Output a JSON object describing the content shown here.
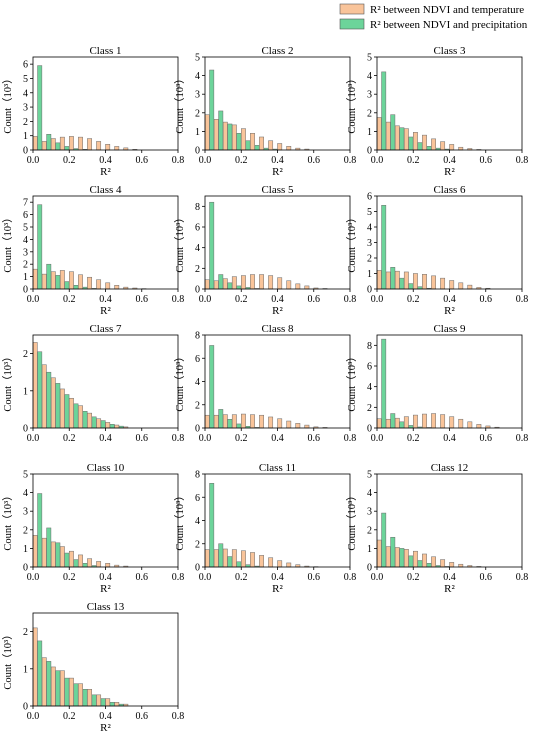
{
  "legend": {
    "entries": [
      {
        "label": "R² between NDVI and temperature",
        "color": "#F9C49A"
      },
      {
        "label": "R² between NDVI and precipitation",
        "color": "#6CD49A"
      }
    ],
    "placement": "top-right"
  },
  "chart_data": [
    {
      "type": "bar",
      "title": "Class 1",
      "xlabel": "R²",
      "ylabel": "Count（10³）",
      "xlim": [
        0,
        0.8
      ],
      "ylim": [
        0,
        6.5
      ],
      "yticks": [
        0,
        1,
        2,
        3,
        4,
        5,
        6
      ],
      "x": [
        0.025,
        0.075,
        0.125,
        0.175,
        0.225,
        0.275,
        0.325,
        0.375,
        0.425,
        0.475,
        0.525,
        0.575,
        0.625,
        0.675,
        0.725,
        0.775
      ],
      "series": [
        {
          "name": "R² between NDVI and temperature",
          "values": [
            0.95,
            0.6,
            0.8,
            0.9,
            0.95,
            0.9,
            0.8,
            0.6,
            0.4,
            0.25,
            0.15,
            0.05,
            0,
            0,
            0,
            0
          ]
        },
        {
          "name": "R² between NDVI and precipitation",
          "values": [
            5.9,
            1.1,
            0.5,
            0.25,
            0.1,
            0.05,
            0,
            0,
            0,
            0,
            0,
            0,
            0,
            0,
            0,
            0
          ]
        }
      ]
    },
    {
      "type": "bar",
      "title": "Class 2",
      "xlabel": "R²",
      "ylabel": "Count（10³）",
      "xlim": [
        0,
        0.8
      ],
      "ylim": [
        0,
        5
      ],
      "yticks": [
        0,
        1,
        2,
        3,
        4,
        5
      ],
      "x": [
        0.025,
        0.075,
        0.125,
        0.175,
        0.225,
        0.275,
        0.325,
        0.375,
        0.425,
        0.475,
        0.525,
        0.575,
        0.625,
        0.675,
        0.725,
        0.775
      ],
      "series": [
        {
          "name": "R² between NDVI and temperature",
          "values": [
            1.9,
            1.65,
            1.5,
            1.35,
            1.15,
            0.9,
            0.7,
            0.5,
            0.35,
            0.2,
            0.1,
            0.05,
            0,
            0,
            0,
            0
          ]
        },
        {
          "name": "R² between NDVI and precipitation",
          "values": [
            4.3,
            2.1,
            1.4,
            0.9,
            0.5,
            0.25,
            0.1,
            0.05,
            0,
            0,
            0,
            0,
            0,
            0,
            0,
            0
          ]
        }
      ]
    },
    {
      "type": "bar",
      "title": "Class 3",
      "xlabel": "R²",
      "ylabel": "Count（10³）",
      "xlim": [
        0,
        0.8
      ],
      "ylim": [
        0,
        5
      ],
      "yticks": [
        0,
        1,
        2,
        3,
        4,
        5
      ],
      "x": [
        0.025,
        0.075,
        0.125,
        0.175,
        0.225,
        0.275,
        0.325,
        0.375,
        0.425,
        0.475,
        0.525,
        0.575,
        0.625,
        0.675,
        0.725,
        0.775
      ],
      "series": [
        {
          "name": "R² between NDVI and temperature",
          "values": [
            1.75,
            1.5,
            1.3,
            1.15,
            0.95,
            0.8,
            0.6,
            0.45,
            0.3,
            0.15,
            0.08,
            0.03,
            0,
            0,
            0,
            0
          ]
        },
        {
          "name": "R² between NDVI and precipitation",
          "values": [
            4.2,
            1.9,
            1.2,
            0.7,
            0.4,
            0.2,
            0.1,
            0.05,
            0,
            0,
            0,
            0,
            0,
            0,
            0,
            0
          ]
        }
      ]
    },
    {
      "type": "bar",
      "title": "Class 4",
      "xlabel": "R²",
      "ylabel": "Count（10³）",
      "xlim": [
        0,
        0.8
      ],
      "ylim": [
        0,
        7.5
      ],
      "yticks": [
        0,
        1,
        2,
        3,
        4,
        5,
        6,
        7
      ],
      "x": [
        0.025,
        0.075,
        0.125,
        0.175,
        0.225,
        0.275,
        0.325,
        0.375,
        0.425,
        0.475,
        0.525,
        0.575,
        0.625,
        0.675,
        0.725,
        0.775
      ],
      "series": [
        {
          "name": "R² between NDVI and temperature",
          "values": [
            1.6,
            1.2,
            1.4,
            1.5,
            1.4,
            1.15,
            0.95,
            0.75,
            0.5,
            0.3,
            0.15,
            0.08,
            0.03,
            0,
            0,
            0
          ]
        },
        {
          "name": "R² between NDVI and precipitation",
          "values": [
            6.8,
            2.0,
            1.1,
            0.6,
            0.3,
            0.15,
            0.05,
            0,
            0,
            0,
            0,
            0,
            0,
            0,
            0,
            0
          ]
        }
      ]
    },
    {
      "type": "bar",
      "title": "Class 5",
      "xlabel": "R²",
      "ylabel": "Count（10³）",
      "xlim": [
        0,
        0.8
      ],
      "ylim": [
        0,
        9
      ],
      "yticks": [
        0,
        2,
        4,
        6,
        8
      ],
      "x": [
        0.025,
        0.075,
        0.125,
        0.175,
        0.225,
        0.275,
        0.325,
        0.375,
        0.425,
        0.475,
        0.525,
        0.575,
        0.625,
        0.675,
        0.725,
        0.775
      ],
      "series": [
        {
          "name": "R² between NDVI and temperature",
          "values": [
            0.9,
            0.8,
            1.0,
            1.2,
            1.3,
            1.4,
            1.4,
            1.3,
            1.1,
            0.8,
            0.5,
            0.3,
            0.1,
            0.05,
            0,
            0
          ]
        },
        {
          "name": "R² between NDVI and precipitation",
          "values": [
            8.4,
            1.4,
            0.6,
            0.3,
            0.15,
            0.05,
            0,
            0,
            0,
            0,
            0,
            0,
            0,
            0,
            0,
            0
          ]
        }
      ]
    },
    {
      "type": "bar",
      "title": "Class 6",
      "xlabel": "R²",
      "ylabel": "Count（10³）",
      "xlim": [
        0,
        0.8
      ],
      "ylim": [
        0,
        6
      ],
      "yticks": [
        0,
        1,
        2,
        3,
        4,
        5,
        6
      ],
      "x": [
        0.025,
        0.075,
        0.125,
        0.175,
        0.225,
        0.275,
        0.325,
        0.375,
        0.425,
        0.475,
        0.525,
        0.575,
        0.625,
        0.675,
        0.725,
        0.775
      ],
      "series": [
        {
          "name": "R² between NDVI and temperature",
          "values": [
            1.2,
            1.1,
            1.15,
            1.1,
            1.0,
            0.95,
            0.85,
            0.7,
            0.55,
            0.4,
            0.25,
            0.1,
            0.05,
            0,
            0,
            0
          ]
        },
        {
          "name": "R² between NDVI and precipitation",
          "values": [
            5.4,
            1.4,
            0.7,
            0.35,
            0.15,
            0.05,
            0,
            0,
            0,
            0,
            0,
            0,
            0,
            0,
            0,
            0
          ]
        }
      ]
    },
    {
      "type": "bar",
      "title": "Class 7",
      "xlabel": "",
      "ylabel": "Count（10³）",
      "xlim": [
        0,
        0.8
      ],
      "ylim": [
        0,
        2.5
      ],
      "yticks": [
        0,
        1,
        2
      ],
      "x": [
        0.025,
        0.075,
        0.125,
        0.175,
        0.225,
        0.275,
        0.325,
        0.375,
        0.425,
        0.475,
        0.525,
        0.575,
        0.625,
        0.675,
        0.725,
        0.775
      ],
      "series": [
        {
          "name": "R² between NDVI and temperature",
          "values": [
            2.3,
            1.7,
            1.35,
            1.05,
            0.8,
            0.6,
            0.4,
            0.25,
            0.15,
            0.08,
            0.03,
            0,
            0,
            0,
            0,
            0
          ]
        },
        {
          "name": "R² between NDVI and precipitation",
          "values": [
            2.05,
            1.5,
            1.2,
            0.9,
            0.65,
            0.45,
            0.3,
            0.2,
            0.1,
            0.05,
            0,
            0,
            0,
            0,
            0,
            0
          ]
        }
      ]
    },
    {
      "type": "bar",
      "title": "Class 8",
      "xlabel": "",
      "ylabel": "Count（10³）",
      "xlim": [
        0,
        0.8
      ],
      "ylim": [
        0,
        8
      ],
      "yticks": [
        0,
        2,
        4,
        6,
        8
      ],
      "x": [
        0.025,
        0.075,
        0.125,
        0.175,
        0.225,
        0.275,
        0.325,
        0.375,
        0.425,
        0.475,
        0.525,
        0.575,
        0.625,
        0.675,
        0.725,
        0.775
      ],
      "series": [
        {
          "name": "R² between NDVI and temperature",
          "values": [
            1.1,
            1.1,
            1.15,
            1.15,
            1.2,
            1.15,
            1.1,
            0.95,
            0.8,
            0.6,
            0.4,
            0.25,
            0.1,
            0.05,
            0,
            0
          ]
        },
        {
          "name": "R² between NDVI and precipitation",
          "values": [
            7.1,
            1.6,
            0.75,
            0.35,
            0.15,
            0.05,
            0,
            0,
            0,
            0,
            0,
            0,
            0,
            0,
            0,
            0
          ]
        }
      ]
    },
    {
      "type": "bar",
      "title": "Class 9",
      "xlabel": "",
      "ylabel": "Count（10³）",
      "xlim": [
        0,
        0.8
      ],
      "ylim": [
        0,
        9
      ],
      "yticks": [
        0,
        2,
        4,
        6,
        8
      ],
      "x": [
        0.025,
        0.075,
        0.125,
        0.175,
        0.225,
        0.275,
        0.325,
        0.375,
        0.425,
        0.475,
        0.525,
        0.575,
        0.625,
        0.675,
        0.725,
        0.775
      ],
      "series": [
        {
          "name": "R² between NDVI and temperature",
          "values": [
            0.9,
            0.85,
            0.95,
            1.1,
            1.25,
            1.35,
            1.4,
            1.3,
            1.1,
            0.85,
            0.6,
            0.35,
            0.2,
            0.08,
            0,
            0
          ]
        },
        {
          "name": "R² between NDVI and precipitation",
          "values": [
            8.6,
            1.4,
            0.6,
            0.25,
            0.1,
            0.05,
            0,
            0,
            0,
            0,
            0,
            0,
            0,
            0,
            0,
            0
          ]
        }
      ]
    },
    {
      "type": "bar",
      "title": "Class 10",
      "xlabel": "R²",
      "ylabel": "Count（10³）",
      "xlim": [
        0,
        0.8
      ],
      "ylim": [
        0,
        5
      ],
      "yticks": [
        0,
        1,
        2,
        3,
        4,
        5
      ],
      "x": [
        0.025,
        0.075,
        0.125,
        0.175,
        0.225,
        0.275,
        0.325,
        0.375,
        0.425,
        0.475,
        0.525,
        0.575,
        0.625,
        0.675,
        0.725,
        0.775
      ],
      "series": [
        {
          "name": "R² between NDVI and temperature",
          "values": [
            1.7,
            1.55,
            1.35,
            1.1,
            0.85,
            0.65,
            0.45,
            0.3,
            0.2,
            0.1,
            0.05,
            0,
            0,
            0,
            0,
            0
          ]
        },
        {
          "name": "R² between NDVI and precipitation",
          "values": [
            3.95,
            2.1,
            1.3,
            0.75,
            0.4,
            0.2,
            0.08,
            0,
            0,
            0,
            0,
            0,
            0,
            0,
            0,
            0
          ]
        }
      ]
    },
    {
      "type": "bar",
      "title": "Class 11",
      "xlabel": "R²",
      "ylabel": "Count（10³）",
      "xlim": [
        0,
        0.8
      ],
      "ylim": [
        0,
        8
      ],
      "yticks": [
        0,
        2,
        4,
        6,
        8
      ],
      "x": [
        0.025,
        0.075,
        0.125,
        0.175,
        0.225,
        0.275,
        0.325,
        0.375,
        0.425,
        0.475,
        0.525,
        0.575,
        0.625,
        0.675,
        0.725,
        0.775
      ],
      "series": [
        {
          "name": "R² between NDVI and temperature",
          "values": [
            1.5,
            1.5,
            1.55,
            1.5,
            1.4,
            1.25,
            1.0,
            0.8,
            0.55,
            0.35,
            0.2,
            0.08,
            0.03,
            0,
            0,
            0
          ]
        },
        {
          "name": "R² between NDVI and precipitation",
          "values": [
            7.2,
            2.0,
            0.9,
            0.45,
            0.2,
            0.08,
            0,
            0,
            0,
            0,
            0,
            0,
            0,
            0,
            0,
            0
          ]
        }
      ]
    },
    {
      "type": "bar",
      "title": "Class 12",
      "xlabel": "R²",
      "ylabel": "Count（10³）",
      "xlim": [
        0,
        0.8
      ],
      "ylim": [
        0,
        5
      ],
      "yticks": [
        0,
        1,
        2,
        3,
        4,
        5
      ],
      "x": [
        0.025,
        0.075,
        0.125,
        0.175,
        0.225,
        0.275,
        0.325,
        0.375,
        0.425,
        0.475,
        0.525,
        0.575,
        0.625,
        0.675,
        0.725,
        0.775
      ],
      "series": [
        {
          "name": "R² between NDVI and temperature",
          "values": [
            1.45,
            1.1,
            1.05,
            0.95,
            0.85,
            0.7,
            0.55,
            0.4,
            0.25,
            0.15,
            0.08,
            0.03,
            0,
            0,
            0,
            0
          ]
        },
        {
          "name": "R² between NDVI and precipitation",
          "values": [
            2.9,
            1.6,
            1.0,
            0.6,
            0.35,
            0.2,
            0.08,
            0.03,
            0,
            0,
            0,
            0,
            0,
            0,
            0,
            0
          ]
        }
      ]
    },
    {
      "type": "bar",
      "title": "Class 13",
      "xlabel": "R²",
      "ylabel": "Count（10³）",
      "xlim": [
        0,
        0.8
      ],
      "ylim": [
        0,
        2.5
      ],
      "yticks": [
        0,
        1,
        2
      ],
      "x": [
        0.025,
        0.075,
        0.125,
        0.175,
        0.225,
        0.275,
        0.325,
        0.375,
        0.425,
        0.475,
        0.525,
        0.575,
        0.625,
        0.675,
        0.725,
        0.775
      ],
      "series": [
        {
          "name": "R² between NDVI and temperature",
          "values": [
            2.1,
            1.3,
            1.05,
            0.95,
            0.75,
            0.6,
            0.45,
            0.3,
            0.2,
            0.1,
            0.05,
            0,
            0,
            0,
            0,
            0
          ]
        },
        {
          "name": "R² between NDVI and precipitation",
          "values": [
            1.75,
            1.2,
            0.95,
            0.75,
            0.6,
            0.45,
            0.3,
            0.2,
            0.1,
            0.05,
            0,
            0,
            0,
            0,
            0,
            0
          ]
        }
      ]
    }
  ]
}
